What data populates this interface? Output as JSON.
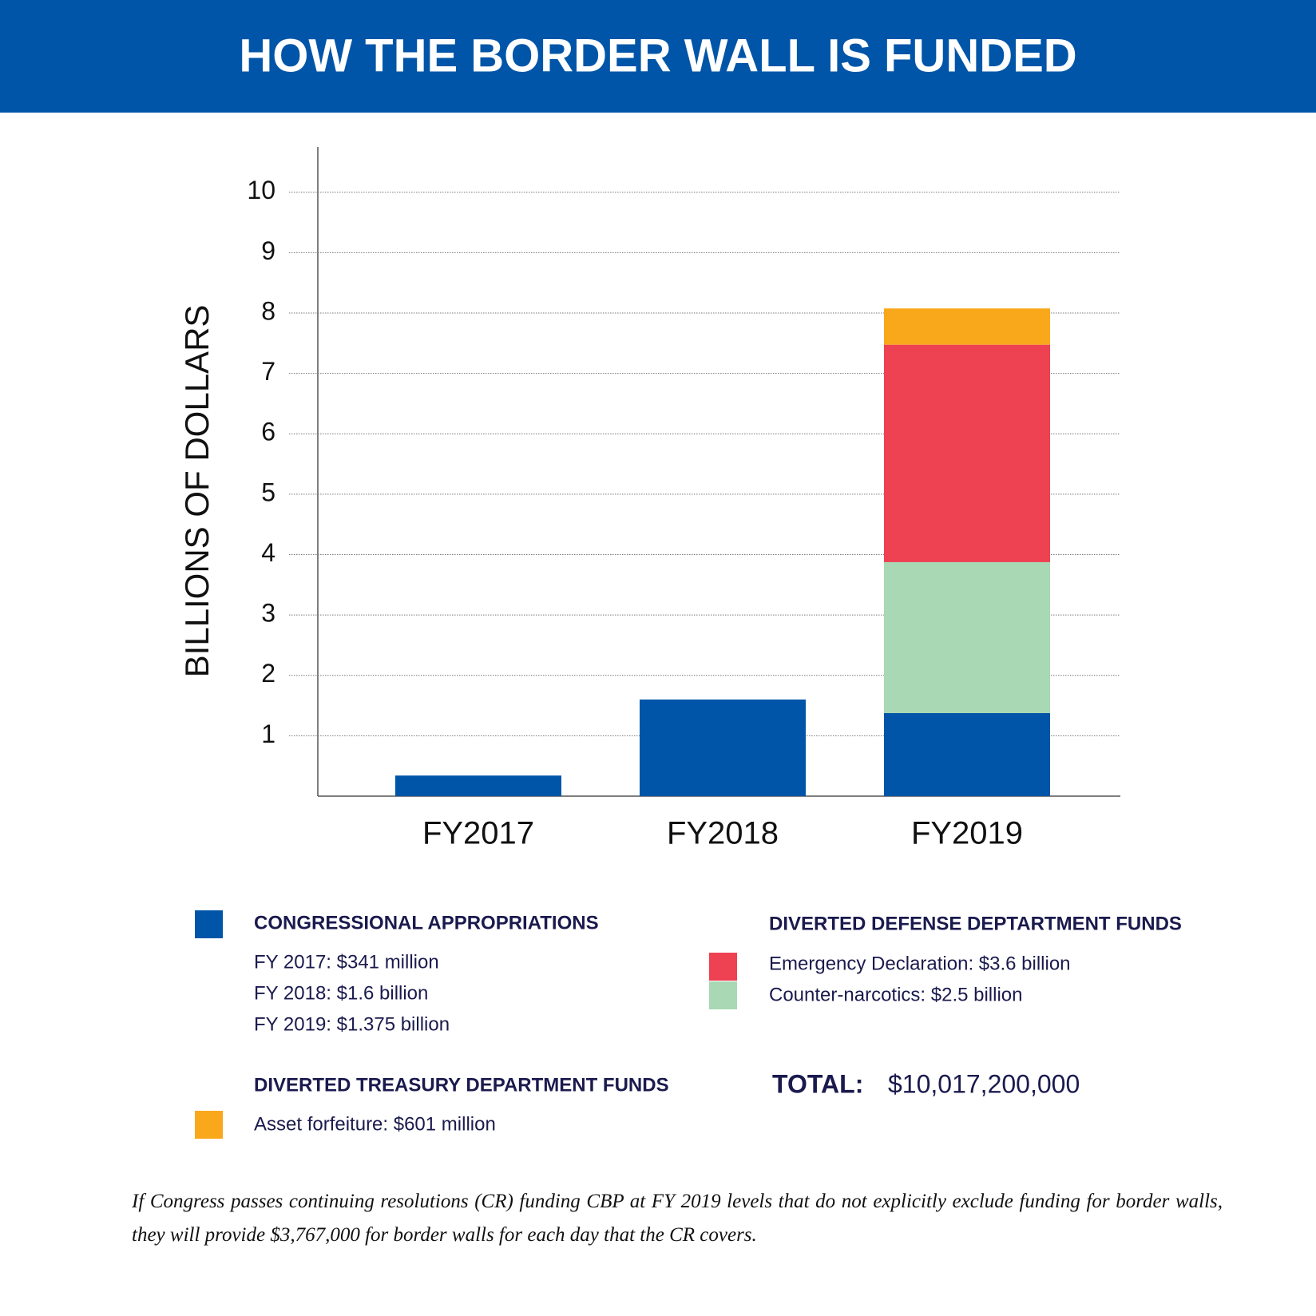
{
  "chart_data": {
    "type": "stacked_bar",
    "title": "HOW THE BORDER WALL IS FUNDED",
    "y_label": "BILLIONS OF DOLLARS",
    "categories": [
      "FY2017",
      "FY2018",
      "FY2019"
    ],
    "series": [
      {
        "name": "CONGRESSIONAL APPROPRIATIONS",
        "color": "#0055a8",
        "values": [
          0.341,
          1.6,
          1.375
        ]
      },
      {
        "name": "Counter-narcotics: $2.5 billion",
        "color": "#a8d8b4",
        "values": [
          null,
          null,
          2.5
        ]
      },
      {
        "name": "Emergency Declaration: $3.6 billion",
        "color": "#ee4152",
        "values": [
          null,
          null,
          3.6
        ]
      },
      {
        "name": "Asset forfeiture: $601 million",
        "color": "#f9a81b",
        "values": [
          null,
          null,
          0.601
        ]
      }
    ],
    "ylim": [
      0,
      10.75
    ],
    "yticks": [
      1,
      2,
      3,
      4,
      5,
      6,
      7,
      8,
      9,
      10
    ],
    "grid": true,
    "appropriation_details": [
      "FY 2017: $341 million",
      "FY 2018: $1.6 billion",
      "FY 2019: $1.375 billion"
    ],
    "defense_heading": "DIVERTED DEFENSE DEPTARTMENT FUNDS",
    "treasury_heading": "DIVERTED TREASURY DEPARTMENT FUNDS",
    "total_label": "TOTAL:",
    "total": "$10,017,200,000",
    "footnote": "If Congress passes continuing resolutions (CR) funding CBP at FY 2019 levels that do not explicitly exclude funding for border walls, they will provide $3,767,000 for border walls for each day that the CR covers."
  }
}
